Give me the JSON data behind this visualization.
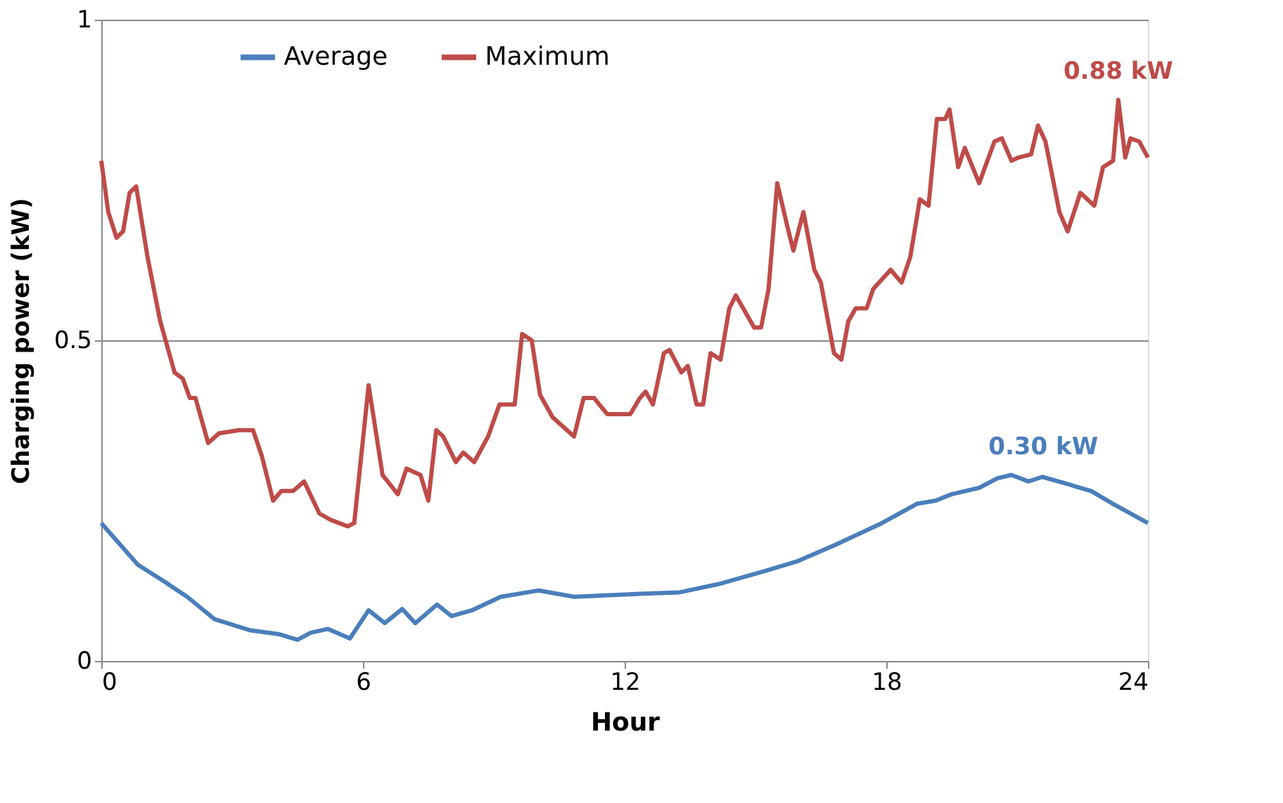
{
  "chart_data": {
    "type": "line",
    "xlabel": "Hour",
    "ylabel": "Charging power (kW)",
    "xlim": [
      0,
      24
    ],
    "xticks": [
      0,
      6,
      12,
      18,
      24
    ],
    "ylim": [
      0,
      1
    ],
    "yticks": [
      0,
      0.5,
      1
    ],
    "grid": "y",
    "legend": "top",
    "marker": "none",
    "line_style": "solid",
    "annotations": [
      {
        "text": "0.88 kW",
        "x": 23.32,
        "y": 0.875
      },
      {
        "text": "0.30 kW",
        "x": 21.6,
        "y": 0.29
      }
    ],
    "series": [
      {
        "name": "Average",
        "color": "#4a7ebb",
        "x": [
          0,
          0.45,
          0.84,
          1.42,
          1.97,
          2.6,
          3.4,
          4.06,
          4.5,
          4.8,
          5.2,
          5.7,
          6.13,
          6.5,
          6.9,
          7.2,
          7.7,
          8.03,
          8.5,
          9.16,
          10.03,
          10.84,
          12.45,
          13.26,
          14.16,
          15.2,
          15.94,
          16.8,
          17.9,
          18.7,
          19.13,
          19.5,
          20.13,
          20.55,
          20.87,
          21.26,
          21.58,
          22.2,
          22.7,
          23.2,
          24
        ],
        "values": [
          0.215,
          0.18,
          0.15,
          0.125,
          0.1,
          0.065,
          0.048,
          0.042,
          0.033,
          0.044,
          0.05,
          0.035,
          0.079,
          0.059,
          0.081,
          0.059,
          0.088,
          0.07,
          0.079,
          0.1,
          0.11,
          0.1,
          0.105,
          0.107,
          0.12,
          0.14,
          0.155,
          0.18,
          0.215,
          0.245,
          0.25,
          0.26,
          0.27,
          0.285,
          0.29,
          0.28,
          0.287,
          0.275,
          0.265,
          0.245,
          0.215
        ]
      },
      {
        "name": "Maximum",
        "color": "#be4b48",
        "x": [
          0,
          0.16,
          0.35,
          0.5,
          0.65,
          0.8,
          1.06,
          1.35,
          1.68,
          1.87,
          2.03,
          2.16,
          2.45,
          2.7,
          3.16,
          3.48,
          3.68,
          3.94,
          4.13,
          4.4,
          4.65,
          5.0,
          5.26,
          5.65,
          5.8,
          6.13,
          6.45,
          6.8,
          7.0,
          7.32,
          7.5,
          7.68,
          7.84,
          8.13,
          8.3,
          8.55,
          8.87,
          9.13,
          9.48,
          9.65,
          9.87,
          10.06,
          10.35,
          10.84,
          11.06,
          11.3,
          11.6,
          12.13,
          12.35,
          12.48,
          12.65,
          12.9,
          13.03,
          13.3,
          13.45,
          13.65,
          13.8,
          13.97,
          14.2,
          14.4,
          14.55,
          14.97,
          15.13,
          15.3,
          15.5,
          15.74,
          15.87,
          16.1,
          16.35,
          16.5,
          16.8,
          16.97,
          17.13,
          17.3,
          17.55,
          17.7,
          18.1,
          18.35,
          18.55,
          18.77,
          18.97,
          19.16,
          19.35,
          19.45,
          19.65,
          19.8,
          20.13,
          20.48,
          20.65,
          20.87,
          21.03,
          21.32,
          21.48,
          21.65,
          21.97,
          22.16,
          22.45,
          22.77,
          22.97,
          23.2,
          23.32,
          23.48,
          23.6,
          23.8,
          24
        ],
        "values": [
          0.78,
          0.7,
          0.66,
          0.67,
          0.73,
          0.74,
          0.63,
          0.53,
          0.45,
          0.44,
          0.41,
          0.41,
          0.34,
          0.355,
          0.36,
          0.36,
          0.32,
          0.25,
          0.265,
          0.265,
          0.28,
          0.23,
          0.22,
          0.21,
          0.215,
          0.43,
          0.29,
          0.26,
          0.3,
          0.29,
          0.25,
          0.36,
          0.35,
          0.31,
          0.325,
          0.31,
          0.35,
          0.4,
          0.4,
          0.51,
          0.5,
          0.415,
          0.38,
          0.35,
          0.41,
          0.41,
          0.385,
          0.385,
          0.41,
          0.42,
          0.4,
          0.48,
          0.485,
          0.45,
          0.46,
          0.4,
          0.4,
          0.48,
          0.47,
          0.55,
          0.57,
          0.52,
          0.52,
          0.58,
          0.745,
          0.675,
          0.64,
          0.7,
          0.61,
          0.59,
          0.48,
          0.47,
          0.53,
          0.55,
          0.55,
          0.58,
          0.61,
          0.59,
          0.63,
          0.72,
          0.71,
          0.845,
          0.845,
          0.86,
          0.77,
          0.8,
          0.745,
          0.81,
          0.815,
          0.78,
          0.785,
          0.79,
          0.835,
          0.81,
          0.7,
          0.67,
          0.73,
          0.71,
          0.77,
          0.78,
          0.875,
          0.785,
          0.815,
          0.81,
          0.785
        ]
      }
    ]
  }
}
